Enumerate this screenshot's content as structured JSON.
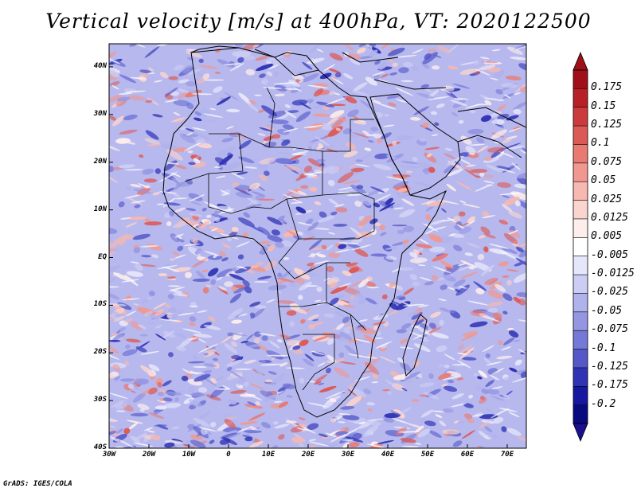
{
  "title": "Vertical velocity [m/s] at 400hPa, VT: 2020122500",
  "footer": "GrADS: IGES/COLA",
  "map": {
    "region": "Africa",
    "lon_range": [
      -30,
      75
    ],
    "lat_range": [
      -40,
      45
    ],
    "lat_ticks": [
      {
        "label": "40N"
      },
      {
        "label": "30N"
      },
      {
        "label": "20N"
      },
      {
        "label": "10N"
      },
      {
        "label": "EQ"
      },
      {
        "label": "10S"
      },
      {
        "label": "20S"
      },
      {
        "label": "30S"
      },
      {
        "label": "40S"
      }
    ],
    "lon_ticks": [
      {
        "label": "30W"
      },
      {
        "label": "20W"
      },
      {
        "label": "10W"
      },
      {
        "label": "0"
      },
      {
        "label": "10E"
      },
      {
        "label": "20E"
      },
      {
        "label": "30E"
      },
      {
        "label": "40E"
      },
      {
        "label": "50E"
      },
      {
        "label": "60E"
      },
      {
        "label": "70E"
      }
    ]
  },
  "colorbar": {
    "labels": [
      "0.175",
      "0.15",
      "0.125",
      "0.1",
      "0.075",
      "0.05",
      "0.025",
      "0.0125",
      "0.005",
      "-0.005",
      "-0.0125",
      "-0.025",
      "-0.05",
      "-0.075",
      "-0.1",
      "-0.125",
      "-0.175",
      "-0.2"
    ],
    "colors": [
      "#a01018",
      "#b82028",
      "#cc3a3c",
      "#dc5a56",
      "#e87a72",
      "#f09890",
      "#f6b8b0",
      "#fad4ce",
      "#fdeeec",
      "#ffffff",
      "#e6e6fa",
      "#cccdf4",
      "#b0b2ec",
      "#9496e2",
      "#7478d6",
      "#5458c8",
      "#3034b4",
      "#1618a0",
      "#0a0a80"
    ],
    "top_arrow_color": "#a01018",
    "bottom_arrow_color": "#1a1090"
  },
  "colors": {
    "field_base": "#b7b8ee",
    "coastline": "#000000"
  }
}
